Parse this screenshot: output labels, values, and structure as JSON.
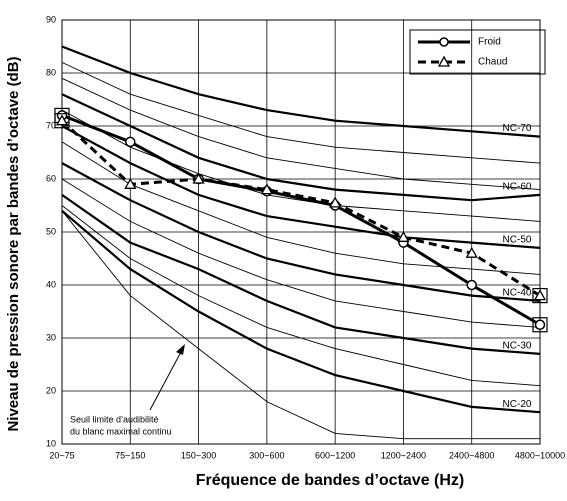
{
  "chart_data": {
    "type": "line",
    "xlabel": "Fréquence de bandes d’octave (Hz)",
    "ylabel": "Niveau de pression sonore par bandes d’octave (dB)",
    "categories": [
      "20~75",
      "75~150",
      "150~300",
      "300~600",
      "600~1200",
      "1200~2400",
      "2400~4800",
      "4800~10000"
    ],
    "ylim": [
      10,
      90
    ],
    "yticks": [
      10,
      20,
      30,
      40,
      50,
      60,
      70,
      80,
      90
    ],
    "grid": true,
    "series": [
      {
        "name": "Froid",
        "color": "#000000",
        "dash": false,
        "marker": "circle",
        "values": [
          72,
          67,
          60,
          57.7,
          55,
          48,
          40,
          32.5
        ]
      },
      {
        "name": "Chaud",
        "color": "#000000",
        "dash": true,
        "marker": "triangle",
        "values": [
          71,
          59,
          60,
          58,
          55.5,
          49,
          46,
          38
        ]
      }
    ],
    "nc_curves": [
      {
        "values": [
          85,
          80,
          76,
          73,
          71,
          70,
          69,
          68
        ],
        "label": "NC-70",
        "bold": true
      },
      {
        "values": [
          82,
          76,
          72,
          68,
          66,
          65,
          64,
          63
        ],
        "bold": false
      },
      {
        "values": [
          79,
          73,
          68,
          64,
          62,
          60,
          59,
          58
        ],
        "bold": false
      },
      {
        "values": [
          76,
          70,
          64,
          60,
          58,
          57,
          56,
          57
        ],
        "label": "NC-60",
        "bold": true
      },
      {
        "values": [
          73,
          66,
          61,
          57,
          55,
          54,
          53,
          52
        ],
        "bold": false
      },
      {
        "values": [
          70,
          63,
          57,
          53,
          51,
          49,
          48,
          47
        ],
        "label": "NC-50",
        "bold": true
      },
      {
        "values": [
          67,
          59,
          54,
          49,
          46,
          44,
          43,
          42
        ],
        "bold": false
      },
      {
        "values": [
          63,
          56,
          50,
          45,
          42,
          40,
          38,
          37
        ],
        "label": "NC-40",
        "bold": true
      },
      {
        "values": [
          60,
          52,
          46,
          41,
          37,
          35,
          33,
          32
        ],
        "bold": false
      },
      {
        "values": [
          57,
          48,
          43,
          37,
          32,
          30,
          28,
          27
        ],
        "label": "NC-30",
        "bold": true
      },
      {
        "values": [
          55,
          45,
          38,
          32,
          28,
          25,
          22,
          21
        ],
        "bold": false
      },
      {
        "values": [
          54,
          43,
          35,
          28,
          23,
          20,
          17,
          16
        ],
        "label": "NC-20",
        "bold": true
      },
      {
        "values": [
          54,
          38,
          28,
          18,
          12,
          11,
          11,
          11
        ],
        "bold": false
      }
    ],
    "annotation": [
      "Seuil limite d’audibilité",
      "du blanc maximal continu"
    ]
  }
}
